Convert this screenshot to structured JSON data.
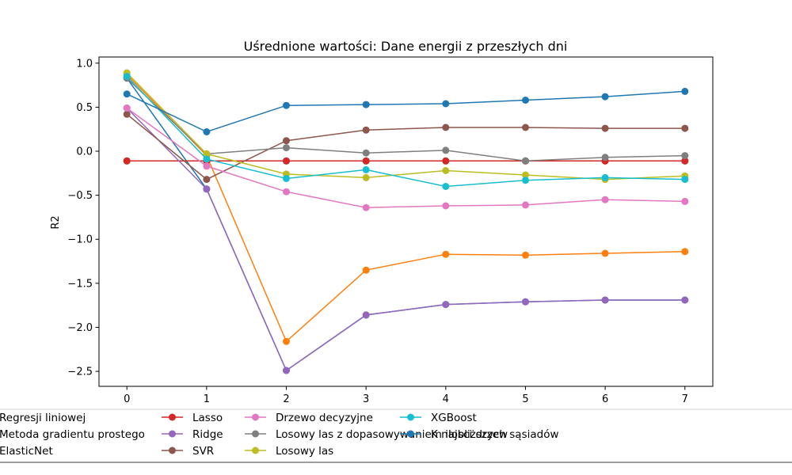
{
  "chart_data": {
    "type": "line",
    "title": "Uśrednione wartości: Dane energii z przeszłych dni",
    "xlabel": "",
    "ylabel": "R2",
    "x": [
      0,
      1,
      2,
      3,
      4,
      5,
      6,
      7
    ],
    "xlim": [
      -0.35,
      7.35
    ],
    "ylim": [
      -2.67,
      1.07
    ],
    "xticks": [
      "0",
      "1",
      "2",
      "3",
      "4",
      "5",
      "6",
      "7"
    ],
    "yticks": [
      1.0,
      0.5,
      0.0,
      -0.5,
      -1.0,
      -1.5,
      -2.0,
      -2.5
    ],
    "ytick_labels": [
      "1.0",
      "0.5",
      "0.0",
      "−0.5",
      "−1.0",
      "−1.5",
      "−2.0",
      "−2.5"
    ],
    "grid": false,
    "legend_placement": "bottom",
    "series": [
      {
        "name": "Regresji liniowej",
        "color": "#1f77b4",
        "marker": "circle",
        "values": [
          0.83,
          -0.43,
          -2.49,
          -1.86,
          -1.74,
          -1.71,
          -1.69,
          -1.69
        ]
      },
      {
        "name": "Metoda gradientu prostego",
        "color": "#ff7f0e",
        "marker": "circle",
        "values": [
          0.87,
          -0.05,
          -2.16,
          -1.35,
          -1.17,
          -1.18,
          -1.16,
          -1.14
        ]
      },
      {
        "name": "ElasticNet",
        "color": "#2ca02c",
        "marker": "circle",
        "values": [
          -0.11,
          -0.11,
          -0.11,
          -0.11,
          -0.11,
          -0.11,
          -0.11,
          -0.11
        ]
      },
      {
        "name": "Lasso",
        "color": "#d62728",
        "marker": "circle",
        "values": [
          -0.11,
          -0.11,
          -0.11,
          -0.11,
          -0.11,
          -0.11,
          -0.11,
          -0.11
        ]
      },
      {
        "name": "Ridge",
        "color": "#9467bd",
        "marker": "circle",
        "values": [
          0.49,
          -0.43,
          -2.49,
          -1.86,
          -1.74,
          -1.71,
          -1.69,
          -1.69
        ]
      },
      {
        "name": "SVR",
        "color": "#8c564b",
        "marker": "circle",
        "values": [
          0.42,
          -0.32,
          0.12,
          0.24,
          0.27,
          0.27,
          0.26,
          0.26
        ]
      },
      {
        "name": "Drzewo decyzyjne",
        "color": "#e377c2",
        "marker": "circle",
        "values": [
          0.49,
          -0.17,
          -0.46,
          -0.64,
          -0.62,
          -0.61,
          -0.55,
          -0.57
        ]
      },
      {
        "name": "Losowy las z dopasowywaniem ilosci drzew",
        "color": "#7f7f7f",
        "marker": "circle",
        "values": [
          0.83,
          -0.03,
          0.04,
          -0.02,
          0.01,
          -0.11,
          -0.07,
          -0.05
        ]
      },
      {
        "name": "Losowy las",
        "color": "#bcbd22",
        "marker": "circle",
        "values": [
          0.89,
          -0.03,
          -0.26,
          -0.3,
          -0.22,
          -0.27,
          -0.32,
          -0.28
        ]
      },
      {
        "name": "XGBoost",
        "color": "#17becf",
        "marker": "circle",
        "values": [
          0.85,
          -0.09,
          -0.31,
          -0.21,
          -0.4,
          -0.33,
          -0.3,
          -0.32
        ]
      },
      {
        "name": "K najbliższych sąsiadów",
        "color": "#1f77b4",
        "marker": "circle",
        "values": [
          0.65,
          0.22,
          0.52,
          0.53,
          0.54,
          0.58,
          0.62,
          0.68
        ]
      }
    ]
  }
}
